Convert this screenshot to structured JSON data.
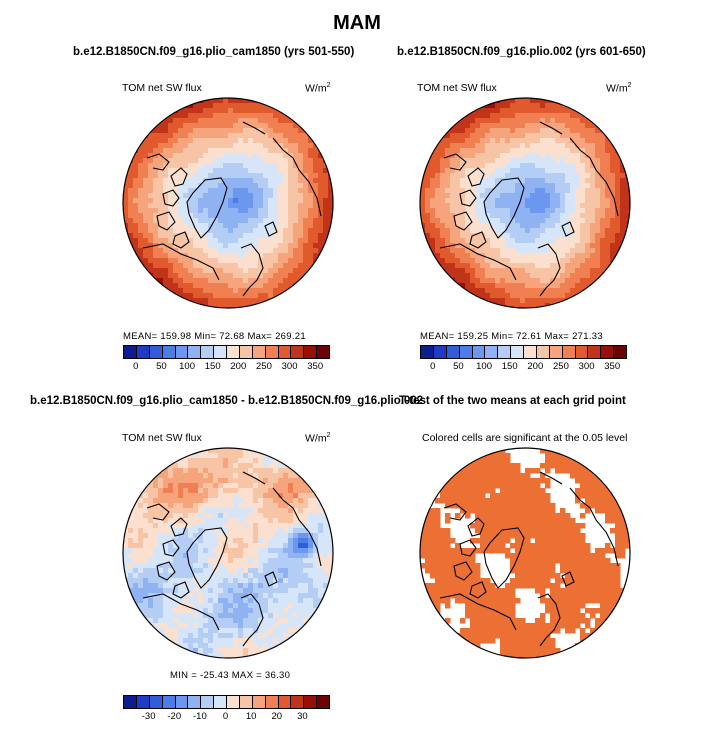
{
  "title": "MAM",
  "panels": {
    "top_left": {
      "title": "b.e12.B1850CN.f09_g16.plio_cam1850 (yrs 501-550)",
      "left_label": "TOM net SW flux",
      "units_base": "W/m",
      "units_exp": "2",
      "stats": "MEAN=  159.98   Min=    72.68   Max=  269.21"
    },
    "top_right": {
      "title": "b.e12.B1850CN.f09_g16.plio.002 (yrs 601-650)",
      "left_label": "TOM net SW flux",
      "units_base": "W/m",
      "units_exp": "2",
      "stats": "MEAN=  159.25   Min=    72.61   Max=  271.33"
    },
    "bottom_left": {
      "title": "b.e12.B1850CN.f09_g16.plio_cam1850 - b.e12.B1850CN.f09_g16.plio.002",
      "left_label": "TOM net SW flux",
      "units_base": "W/m",
      "units_exp": "2",
      "stats": "MIN = -25.43  MAX =   36.30"
    },
    "bottom_right": {
      "title": "T-test of the two means at each grid point",
      "subtitle": "Colored cells are significant at the 0.05 level"
    }
  },
  "chart_data": [
    {
      "type": "heatmap",
      "projection": "north polar stereographic",
      "panel": "top_left",
      "variable": "TOM net SW flux",
      "units": "W/m2",
      "mean": 159.98,
      "min": 72.68,
      "max": 269.21,
      "colorbar_levels": [
        0,
        25,
        50,
        75,
        100,
        125,
        150,
        175,
        200,
        225,
        250,
        275,
        300,
        325,
        350
      ],
      "colorbar_tick_labels": [
        "0",
        "50",
        "100",
        "150",
        "200",
        "250",
        "300",
        "350"
      ]
    },
    {
      "type": "heatmap",
      "projection": "north polar stereographic",
      "panel": "top_right",
      "variable": "TOM net SW flux",
      "units": "W/m2",
      "mean": 159.25,
      "min": 72.61,
      "max": 271.33,
      "colorbar_levels": [
        0,
        25,
        50,
        75,
        100,
        125,
        150,
        175,
        200,
        225,
        250,
        275,
        300,
        325,
        350
      ],
      "colorbar_tick_labels": [
        "0",
        "50",
        "100",
        "150",
        "200",
        "250",
        "300",
        "350"
      ]
    },
    {
      "type": "heatmap",
      "projection": "north polar stereographic",
      "panel": "bottom_left",
      "variable": "TOM net SW flux difference",
      "units": "W/m2",
      "min": -25.43,
      "max": 36.3,
      "colorbar_levels": [
        -35,
        -30,
        -25,
        -20,
        -15,
        -10,
        -5,
        0,
        5,
        10,
        15,
        20,
        25,
        30,
        35
      ],
      "colorbar_tick_labels": [
        "-30",
        "-20",
        "-10",
        "0",
        "10",
        "20",
        "30"
      ]
    },
    {
      "type": "heatmap",
      "projection": "north polar stereographic",
      "panel": "bottom_right",
      "description": "T-test significance mask at 0.05 level",
      "significant_color": "#ec7033"
    }
  ],
  "colors": {
    "abs_scale": [
      "#0d1e8c",
      "#1f3cc4",
      "#2f5fd8",
      "#4a7de6",
      "#6b98ee",
      "#8fb2f2",
      "#b4cdf5",
      "#d7e5f8",
      "#fbe0cf",
      "#f8c4a6",
      "#f5a47b",
      "#f08052",
      "#e05a2e",
      "#c23419",
      "#951107",
      "#6b0503"
    ],
    "diff_scale": [
      "#0d1e8c",
      "#1f3cc4",
      "#2f5fd8",
      "#4a7de6",
      "#6b98ee",
      "#8fb2f2",
      "#b4cdf5",
      "#d7e5f8",
      "#fbe0cf",
      "#f8c4a6",
      "#f5a47b",
      "#f08052",
      "#e05a2e",
      "#c23419",
      "#951107",
      "#6b0503"
    ],
    "ttest": "#ec7033",
    "land_line": "#000000"
  }
}
